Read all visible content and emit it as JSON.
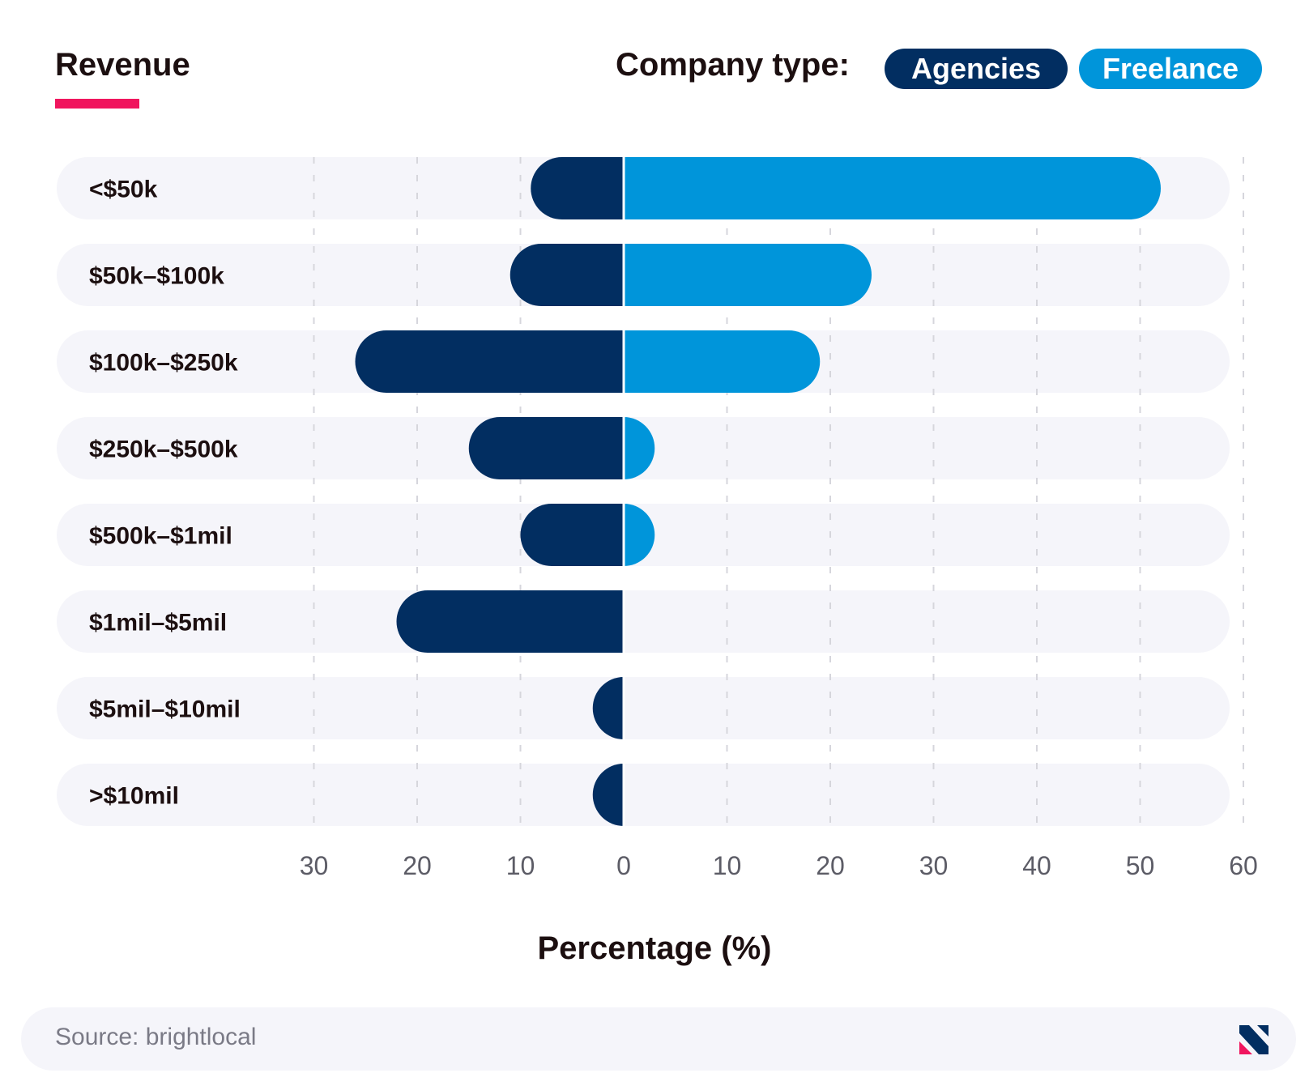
{
  "header": {
    "title": "Revenue",
    "legend_label": "Company type:",
    "legend_items": [
      {
        "label": "Agencies",
        "color": "#022e61"
      },
      {
        "label": "Freelance",
        "color": "#0095da"
      }
    ]
  },
  "footer": {
    "source": "Source: brightlocal",
    "logo_icon": "brightlocal-logo-icon"
  },
  "colors": {
    "track": "#f5f5fa",
    "accent": "#f0155e",
    "gridline": "#d6d6dc",
    "tick_text": "#5c5c66"
  },
  "chart_data": {
    "type": "bar",
    "orientation": "horizontal-diverging",
    "categories": [
      "<$50k",
      "$50k–$100k",
      "$100k–$250k",
      "$250k–$500k",
      "$500k–$1mil",
      "$1mil–$5mil",
      "$5mil–$10mil",
      ">$10mil"
    ],
    "series": [
      {
        "name": "Agencies",
        "direction": "left",
        "color": "#022e61",
        "values": [
          9,
          11,
          26,
          15,
          10,
          22,
          3,
          3
        ]
      },
      {
        "name": "Freelance",
        "direction": "right",
        "color": "#0095da",
        "values": [
          52,
          24,
          19,
          3,
          3,
          0,
          0,
          0
        ]
      }
    ],
    "x_ticks_left": [
      "30",
      "20",
      "10"
    ],
    "x_ticks_right": [
      "0",
      "10",
      "20",
      "30",
      "40",
      "50",
      "60"
    ],
    "xlim": [
      -30,
      60
    ],
    "xlabel": "Percentage (%)",
    "grid": true,
    "legend_position": "top-right"
  }
}
